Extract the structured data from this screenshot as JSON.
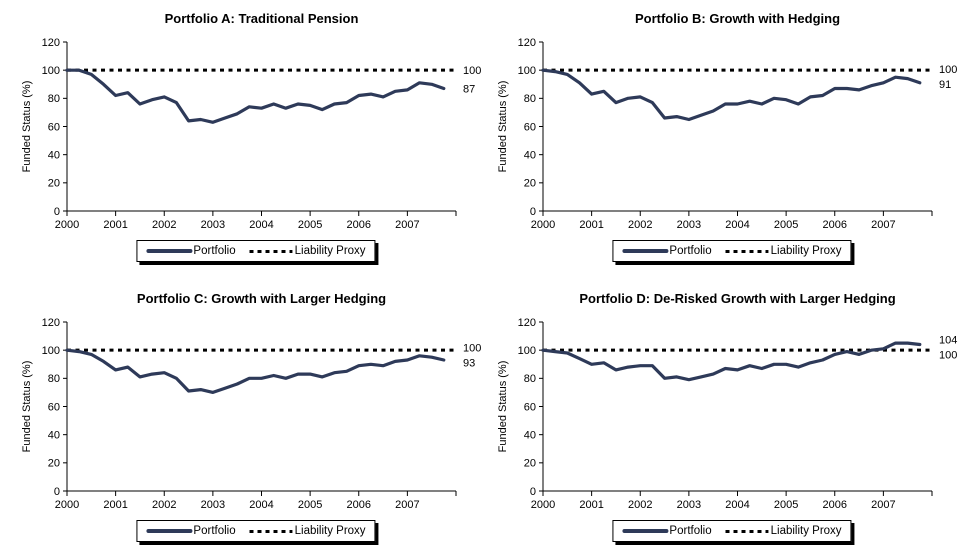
{
  "page": {
    "background": "#ffffff"
  },
  "colors": {
    "portfolio_line": "#2e3a59",
    "liability_line": "#000000",
    "axis": "#000000",
    "text": "#000000"
  },
  "legend": {
    "portfolio_label": "Portfolio",
    "liability_label": "Liability Proxy"
  },
  "chart_data": [
    {
      "type": "line",
      "title": "Portfolio A: Traditional Pension",
      "xlabel": "",
      "ylabel": "Funded Status (%)",
      "ylim": [
        0,
        120
      ],
      "yticks": [
        0,
        20,
        40,
        60,
        80,
        100,
        120
      ],
      "x_range": [
        2000,
        2008
      ],
      "x_tick_years": [
        2000,
        2001,
        2002,
        2003,
        2004,
        2005,
        2006,
        2007
      ],
      "x_start": 2000,
      "x_step_years": 0.25,
      "grid": false,
      "legend_position": "bottom",
      "series": [
        {
          "name": "Portfolio",
          "style": "solid",
          "values": [
            100,
            100,
            97,
            90,
            82,
            84,
            76,
            79,
            81,
            77,
            64,
            65,
            63,
            66,
            69,
            74,
            73,
            76,
            73,
            76,
            75,
            72,
            76,
            77,
            82,
            83,
            81,
            85,
            86,
            91,
            90,
            87
          ]
        },
        {
          "name": "Liability Proxy",
          "style": "dotted",
          "constant": 100
        }
      ],
      "end_labels": [
        {
          "text": "100",
          "value": 100
        },
        {
          "text": "87",
          "value": 87
        }
      ]
    },
    {
      "type": "line",
      "title": "Portfolio B: Growth with Hedging",
      "xlabel": "",
      "ylabel": "Funded Status (%)",
      "ylim": [
        0,
        120
      ],
      "yticks": [
        0,
        20,
        40,
        60,
        80,
        100,
        120
      ],
      "x_range": [
        2000,
        2008
      ],
      "x_tick_years": [
        2000,
        2001,
        2002,
        2003,
        2004,
        2005,
        2006,
        2007
      ],
      "x_start": 2000,
      "x_step_years": 0.25,
      "grid": false,
      "legend_position": "bottom",
      "series": [
        {
          "name": "Portfolio",
          "style": "solid",
          "values": [
            100,
            99,
            97,
            91,
            83,
            85,
            77,
            80,
            81,
            77,
            66,
            67,
            65,
            68,
            71,
            76,
            76,
            78,
            76,
            80,
            79,
            76,
            81,
            82,
            87,
            87,
            86,
            89,
            91,
            95,
            94,
            91
          ]
        },
        {
          "name": "Liability Proxy",
          "style": "dotted",
          "constant": 100
        }
      ],
      "end_labels": [
        {
          "text": "100",
          "value": 100
        },
        {
          "text": "91",
          "value": 91
        }
      ]
    },
    {
      "type": "line",
      "title": "Portfolio C: Growth with Larger Hedging",
      "xlabel": "",
      "ylabel": "Funded Status (%)",
      "ylim": [
        0,
        120
      ],
      "yticks": [
        0,
        20,
        40,
        60,
        80,
        100,
        120
      ],
      "x_range": [
        2000,
        2008
      ],
      "x_tick_years": [
        2000,
        2001,
        2002,
        2003,
        2004,
        2005,
        2006,
        2007
      ],
      "x_start": 2000,
      "x_step_years": 0.25,
      "grid": false,
      "legend_position": "bottom",
      "series": [
        {
          "name": "Portfolio",
          "style": "solid",
          "values": [
            100,
            99,
            97,
            92,
            86,
            88,
            81,
            83,
            84,
            80,
            71,
            72,
            70,
            73,
            76,
            80,
            80,
            82,
            80,
            83,
            83,
            81,
            84,
            85,
            89,
            90,
            89,
            92,
            93,
            96,
            95,
            93
          ]
        },
        {
          "name": "Liability Proxy",
          "style": "dotted",
          "constant": 100
        }
      ],
      "end_labels": [
        {
          "text": "100",
          "value": 100
        },
        {
          "text": "93",
          "value": 93
        }
      ]
    },
    {
      "type": "line",
      "title": "Portfolio D: De-Risked Growth with Larger Hedging",
      "xlabel": "",
      "ylabel": "Funded Status (%)",
      "ylim": [
        0,
        120
      ],
      "yticks": [
        0,
        20,
        40,
        60,
        80,
        100,
        120
      ],
      "x_range": [
        2000,
        2008
      ],
      "x_tick_years": [
        2000,
        2001,
        2002,
        2003,
        2004,
        2005,
        2006,
        2007
      ],
      "x_start": 2000,
      "x_step_years": 0.25,
      "grid": false,
      "legend_position": "bottom",
      "series": [
        {
          "name": "Portfolio",
          "style": "solid",
          "values": [
            100,
            99,
            98,
            94,
            90,
            91,
            86,
            88,
            89,
            89,
            80,
            81,
            79,
            81,
            83,
            87,
            86,
            89,
            87,
            90,
            90,
            88,
            91,
            93,
            97,
            99,
            97,
            100,
            101,
            105,
            105,
            104
          ]
        },
        {
          "name": "Liability Proxy",
          "style": "dotted",
          "constant": 100
        }
      ],
      "end_labels": [
        {
          "text": "104",
          "value": 104
        },
        {
          "text": "100",
          "value": 100
        }
      ]
    }
  ]
}
